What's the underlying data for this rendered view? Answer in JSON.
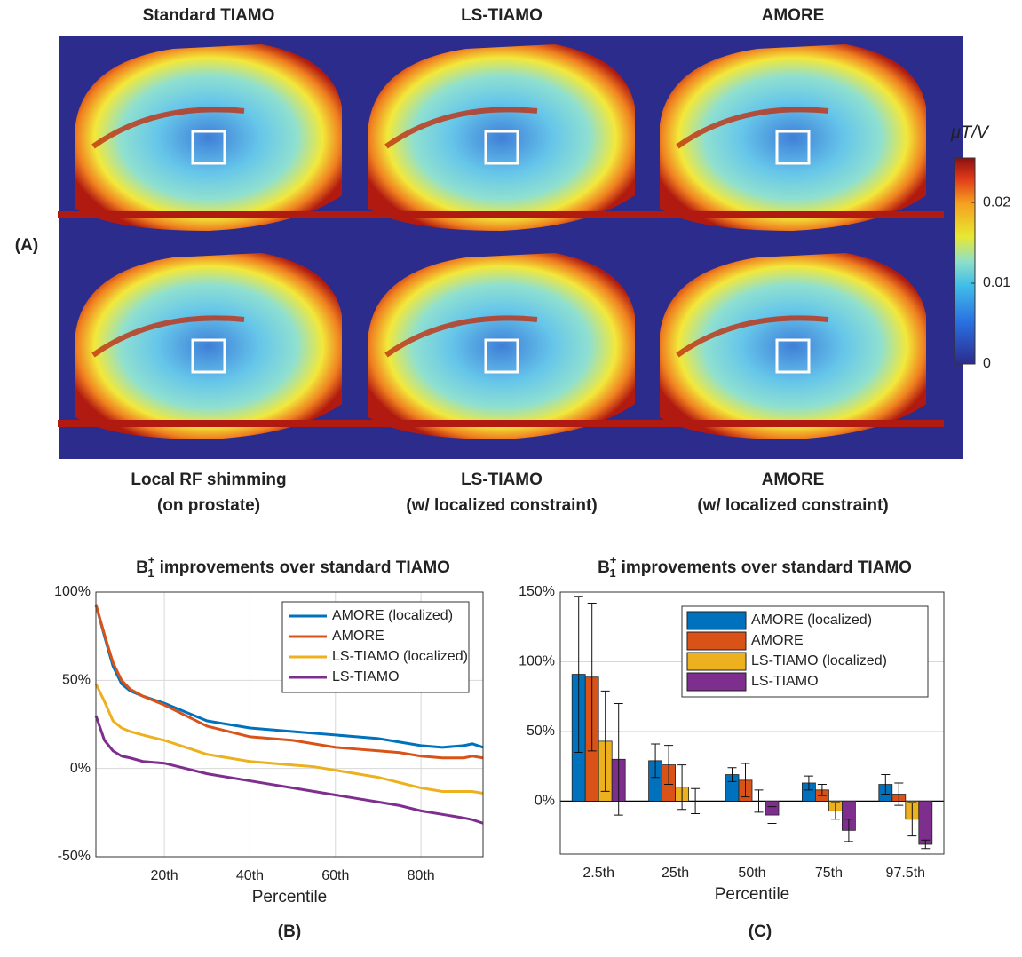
{
  "chart_data": [
    {
      "type": "image-grid",
      "panel_label": "(A)",
      "top_titles": [
        "Standard TIAMO",
        "LS-TIAMO",
        "AMORE"
      ],
      "bottom_titles": [
        [
          "Local RF shimming",
          "(on prostate)"
        ],
        [
          "LS-TIAMO",
          "(w/ localized constraint)"
        ],
        [
          "AMORE",
          "(w/ localized constraint)"
        ]
      ],
      "colorbar_label": "μT/V",
      "clim": [
        0,
        0.0255
      ],
      "cticks": [
        0,
        0.01,
        0.02
      ]
    },
    {
      "type": "line",
      "panel_label": "(B)",
      "title": {
        "base": "B",
        "subscript": "1",
        "superscript": "+",
        "text": "improvements over standard TIAMO"
      },
      "xlabel": "Percentile",
      "x": [
        4,
        6,
        8,
        10,
        12,
        15,
        20,
        25,
        30,
        35,
        40,
        45,
        50,
        55,
        60,
        65,
        70,
        75,
        80,
        85,
        90,
        92,
        94.5
      ],
      "xlim": [
        4,
        94.5
      ],
      "xticks": [
        {
          "value": 20,
          "label": "20th"
        },
        {
          "value": 40,
          "label": "40th"
        },
        {
          "value": 60,
          "label": "60th"
        },
        {
          "value": 80,
          "label": "80th"
        }
      ],
      "ylim": [
        -50,
        100
      ],
      "yticks": [
        {
          "value": -50,
          "label": "-50%"
        },
        {
          "value": 0,
          "label": "0%"
        },
        {
          "value": 50,
          "label": "50%"
        },
        {
          "value": 100,
          "label": "100%"
        }
      ],
      "grid": true,
      "legend": "upper right",
      "series": [
        {
          "name": "AMORE (localized)",
          "color": "#0072BD",
          "values": [
            93,
            75,
            58,
            48,
            44,
            41,
            37,
            32,
            27,
            25,
            23,
            22,
            21,
            20,
            19,
            18,
            17,
            15,
            13,
            12,
            13,
            14,
            12
          ]
        },
        {
          "name": "AMORE",
          "color": "#D95319",
          "values": [
            93,
            76,
            60,
            50,
            45,
            41,
            36,
            30,
            24,
            21,
            18,
            17,
            16,
            14,
            12,
            11,
            10,
            9,
            7,
            6,
            6,
            7,
            6
          ]
        },
        {
          "name": "LS-TIAMO (localized)",
          "color": "#EDB120",
          "values": [
            48,
            38,
            27,
            23,
            21,
            19,
            16,
            12,
            8,
            6,
            4,
            3,
            2,
            1,
            -1,
            -3,
            -5,
            -8,
            -11,
            -13,
            -13,
            -13,
            -14
          ]
        },
        {
          "name": "LS-TIAMO",
          "color": "#7E2F8E",
          "values": [
            30,
            16,
            10,
            7,
            6,
            4,
            3,
            0,
            -3,
            -5,
            -7,
            -9,
            -11,
            -13,
            -15,
            -17,
            -19,
            -21,
            -24,
            -26,
            -28,
            -29,
            -31
          ]
        }
      ]
    },
    {
      "type": "bar",
      "panel_label": "(C)",
      "title": {
        "base": "B",
        "subscript": "1",
        "superscript": "+",
        "text": "improvements over standard TIAMO"
      },
      "xlabel": "Percentile",
      "categories": [
        "2.5th",
        "25th",
        "50th",
        "75th",
        "97.5th"
      ],
      "ylim": [
        -38,
        150
      ],
      "yticks": [
        {
          "value": 0,
          "label": "0%"
        },
        {
          "value": 50,
          "label": "50%"
        },
        {
          "value": 100,
          "label": "100%"
        },
        {
          "value": 150,
          "label": "150%"
        }
      ],
      "grid": true,
      "legend": "upper right",
      "series": [
        {
          "name": "AMORE (localized)",
          "color": "#0072BD",
          "values": [
            91,
            29,
            19,
            13,
            12
          ],
          "errors": [
            56,
            12,
            5,
            5,
            7
          ]
        },
        {
          "name": "AMORE",
          "color": "#D95319",
          "values": [
            89,
            26,
            15,
            8,
            5
          ],
          "errors": [
            53,
            14,
            12,
            4,
            8
          ]
        },
        {
          "name": "LS-TIAMO (localized)",
          "color": "#EDB120",
          "values": [
            43,
            10,
            0,
            -7,
            -13
          ],
          "errors": [
            36,
            16,
            8,
            6,
            12
          ]
        },
        {
          "name": "LS-TIAMO",
          "color": "#7E2F8E",
          "values": [
            30,
            0,
            -10,
            -21,
            -31
          ],
          "errors": [
            40,
            9,
            6,
            8,
            3
          ]
        }
      ]
    }
  ]
}
